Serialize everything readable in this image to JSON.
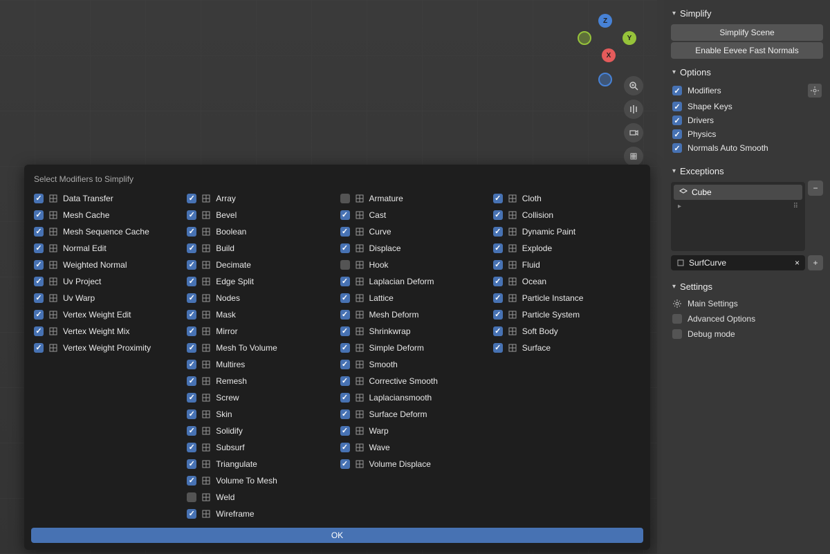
{
  "dialog": {
    "title": "Select Modifiers to Simplify",
    "ok_label": "OK",
    "columns": [
      [
        {
          "label": "Data Transfer",
          "checked": true,
          "icon": "data-transfer"
        },
        {
          "label": "Mesh Cache",
          "checked": true,
          "icon": "mesh-cache"
        },
        {
          "label": "Mesh Sequence Cache",
          "checked": true,
          "icon": "mesh-seq"
        },
        {
          "label": "Normal Edit",
          "checked": true,
          "icon": "normal-edit"
        },
        {
          "label": "Weighted Normal",
          "checked": true,
          "icon": "weighted-normal"
        },
        {
          "label": "Uv Project",
          "checked": true,
          "icon": "uv-project"
        },
        {
          "label": "Uv Warp",
          "checked": true,
          "icon": "uv-warp"
        },
        {
          "label": "Vertex Weight Edit",
          "checked": true,
          "icon": "vw-edit"
        },
        {
          "label": "Vertex Weight Mix",
          "checked": true,
          "icon": "vw-mix"
        },
        {
          "label": "Vertex Weight Proximity",
          "checked": true,
          "icon": "vw-prox"
        }
      ],
      [
        {
          "label": "Array",
          "checked": true,
          "icon": "array"
        },
        {
          "label": "Bevel",
          "checked": true,
          "icon": "bevel"
        },
        {
          "label": "Boolean",
          "checked": true,
          "icon": "boolean"
        },
        {
          "label": "Build",
          "checked": true,
          "icon": "build"
        },
        {
          "label": "Decimate",
          "checked": true,
          "icon": "decimate"
        },
        {
          "label": "Edge Split",
          "checked": true,
          "icon": "edge-split"
        },
        {
          "label": "Nodes",
          "checked": true,
          "icon": "nodes"
        },
        {
          "label": "Mask",
          "checked": true,
          "icon": "mask"
        },
        {
          "label": "Mirror",
          "checked": true,
          "icon": "mirror"
        },
        {
          "label": "Mesh To Volume",
          "checked": true,
          "icon": "mesh-to-vol"
        },
        {
          "label": "Multires",
          "checked": true,
          "icon": "multires"
        },
        {
          "label": "Remesh",
          "checked": true,
          "icon": "remesh"
        },
        {
          "label": "Screw",
          "checked": true,
          "icon": "screw"
        },
        {
          "label": "Skin",
          "checked": true,
          "icon": "skin"
        },
        {
          "label": "Solidify",
          "checked": true,
          "icon": "solidify"
        },
        {
          "label": "Subsurf",
          "checked": true,
          "icon": "subsurf"
        },
        {
          "label": "Triangulate",
          "checked": true,
          "icon": "triangulate"
        },
        {
          "label": "Volume To Mesh",
          "checked": true,
          "icon": "vol-to-mesh"
        },
        {
          "label": "Weld",
          "checked": false,
          "icon": "weld"
        },
        {
          "label": "Wireframe",
          "checked": true,
          "icon": "wireframe"
        }
      ],
      [
        {
          "label": "Armature",
          "checked": false,
          "icon": "armature"
        },
        {
          "label": "Cast",
          "checked": true,
          "icon": "cast"
        },
        {
          "label": "Curve",
          "checked": true,
          "icon": "curve"
        },
        {
          "label": "Displace",
          "checked": true,
          "icon": "displace"
        },
        {
          "label": "Hook",
          "checked": false,
          "icon": "hook"
        },
        {
          "label": "Laplacian Deform",
          "checked": true,
          "icon": "lap-deform"
        },
        {
          "label": "Lattice",
          "checked": true,
          "icon": "lattice"
        },
        {
          "label": "Mesh Deform",
          "checked": true,
          "icon": "mesh-deform"
        },
        {
          "label": "Shrinkwrap",
          "checked": true,
          "icon": "shrinkwrap"
        },
        {
          "label": "Simple Deform",
          "checked": true,
          "icon": "simple-deform"
        },
        {
          "label": "Smooth",
          "checked": true,
          "icon": "smooth"
        },
        {
          "label": "Corrective Smooth",
          "checked": true,
          "icon": "corr-smooth"
        },
        {
          "label": "Laplaciansmooth",
          "checked": true,
          "icon": "lap-smooth"
        },
        {
          "label": "Surface Deform",
          "checked": true,
          "icon": "surf-deform"
        },
        {
          "label": "Warp",
          "checked": true,
          "icon": "warp"
        },
        {
          "label": "Wave",
          "checked": true,
          "icon": "wave"
        },
        {
          "label": "Volume Displace",
          "checked": true,
          "icon": "vol-disp"
        }
      ],
      [
        {
          "label": "Cloth",
          "checked": true,
          "icon": "cloth"
        },
        {
          "label": "Collision",
          "checked": true,
          "icon": "collision"
        },
        {
          "label": "Dynamic Paint",
          "checked": true,
          "icon": "dyn-paint"
        },
        {
          "label": "Explode",
          "checked": true,
          "icon": "explode"
        },
        {
          "label": "Fluid",
          "checked": true,
          "icon": "fluid"
        },
        {
          "label": "Ocean",
          "checked": true,
          "icon": "ocean"
        },
        {
          "label": "Particle Instance",
          "checked": true,
          "icon": "part-inst"
        },
        {
          "label": "Particle System",
          "checked": true,
          "icon": "part-sys"
        },
        {
          "label": "Soft Body",
          "checked": true,
          "icon": "soft-body"
        },
        {
          "label": "Surface",
          "checked": true,
          "icon": "surface"
        }
      ]
    ]
  },
  "sidebar": {
    "options_tab": "Options",
    "simplify": {
      "header": "Simplify",
      "btn_scene": "Simplify Scene",
      "btn_normals": "Enable Eevee Fast Normals"
    },
    "options": {
      "header": "Options",
      "items": [
        {
          "label": "Modifiers",
          "checked": true,
          "gear": true
        },
        {
          "label": "Shape Keys",
          "checked": true
        },
        {
          "label": "Drivers",
          "checked": true
        },
        {
          "label": "Physics",
          "checked": true
        },
        {
          "label": "Normals Auto Smooth",
          "checked": true
        }
      ]
    },
    "exceptions": {
      "header": "Exceptions",
      "items": [
        "Cube"
      ],
      "search_value": "SurfCurve"
    },
    "settings": {
      "header": "Settings",
      "main": "Main Settings",
      "advanced": {
        "label": "Advanced Options",
        "checked": false
      },
      "debug": {
        "label": "Debug mode",
        "checked": false
      }
    }
  },
  "gizmo": {
    "x": "X",
    "y": "Y",
    "z": "Z"
  },
  "colors": {
    "accent": "#4772b3",
    "bg_dark": "#1e1e1e",
    "bg_panel": "#383838",
    "btn": "#545454",
    "text": "#e8e8e8"
  }
}
